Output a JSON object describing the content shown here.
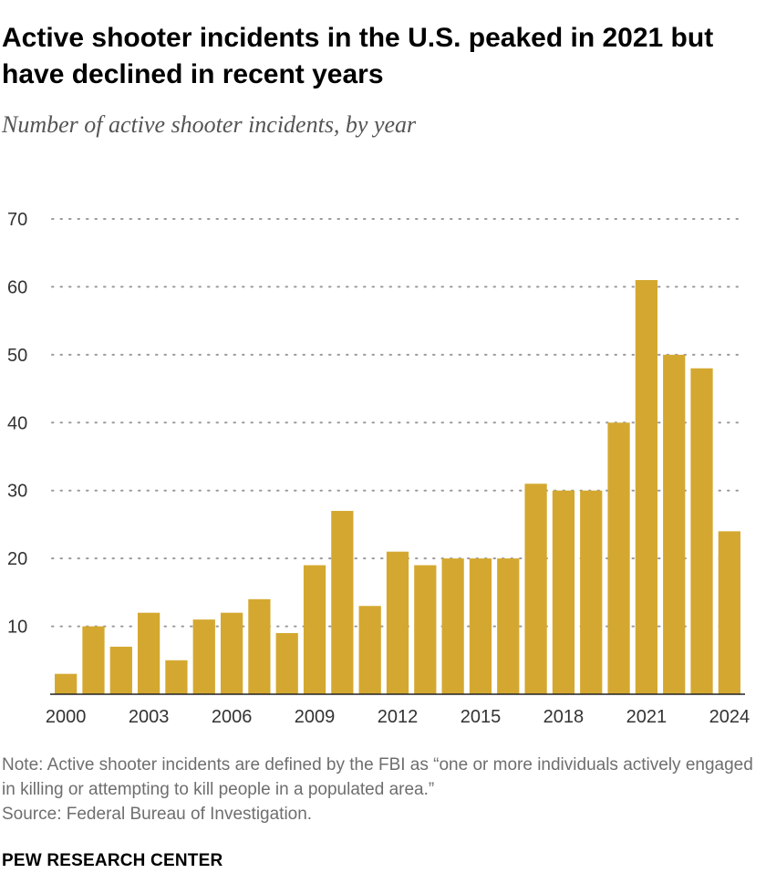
{
  "title": "Active shooter incidents in the U.S. peaked in 2021 but have declined in recent years",
  "subtitle": "Number of active shooter incidents, by year",
  "note": "Note: Active shooter incidents are defined by the FBI as “one or more individuals actively engaged in killing or attempting to kill people in a populated area.”",
  "source": "Source: Federal Bureau of Investigation.",
  "brand": "PEW RESEARCH CENTER",
  "colors": {
    "bar": "#d4a830",
    "grid": "#9a9a9a",
    "axis": "#222222",
    "text": "#333333"
  },
  "chart_data": {
    "type": "bar",
    "categories": [
      "2000",
      "2001",
      "2002",
      "2003",
      "2004",
      "2005",
      "2006",
      "2007",
      "2008",
      "2009",
      "2010",
      "2011",
      "2012",
      "2013",
      "2014",
      "2015",
      "2016",
      "2017",
      "2018",
      "2019",
      "2020",
      "2021",
      "2022",
      "2023",
      "2024"
    ],
    "values": [
      3,
      10,
      7,
      12,
      5,
      11,
      12,
      14,
      9,
      19,
      27,
      13,
      21,
      19,
      20,
      20,
      20,
      31,
      30,
      30,
      40,
      61,
      50,
      48,
      24
    ],
    "x_tick_labels": [
      "2000",
      "2003",
      "2006",
      "2009",
      "2012",
      "2015",
      "2018",
      "2021",
      "2024"
    ],
    "y_ticks": [
      10,
      20,
      30,
      40,
      50,
      60,
      70
    ],
    "ylim": [
      0,
      70
    ],
    "xlabel": "",
    "ylabel": "",
    "grid": true,
    "legend": "none"
  }
}
